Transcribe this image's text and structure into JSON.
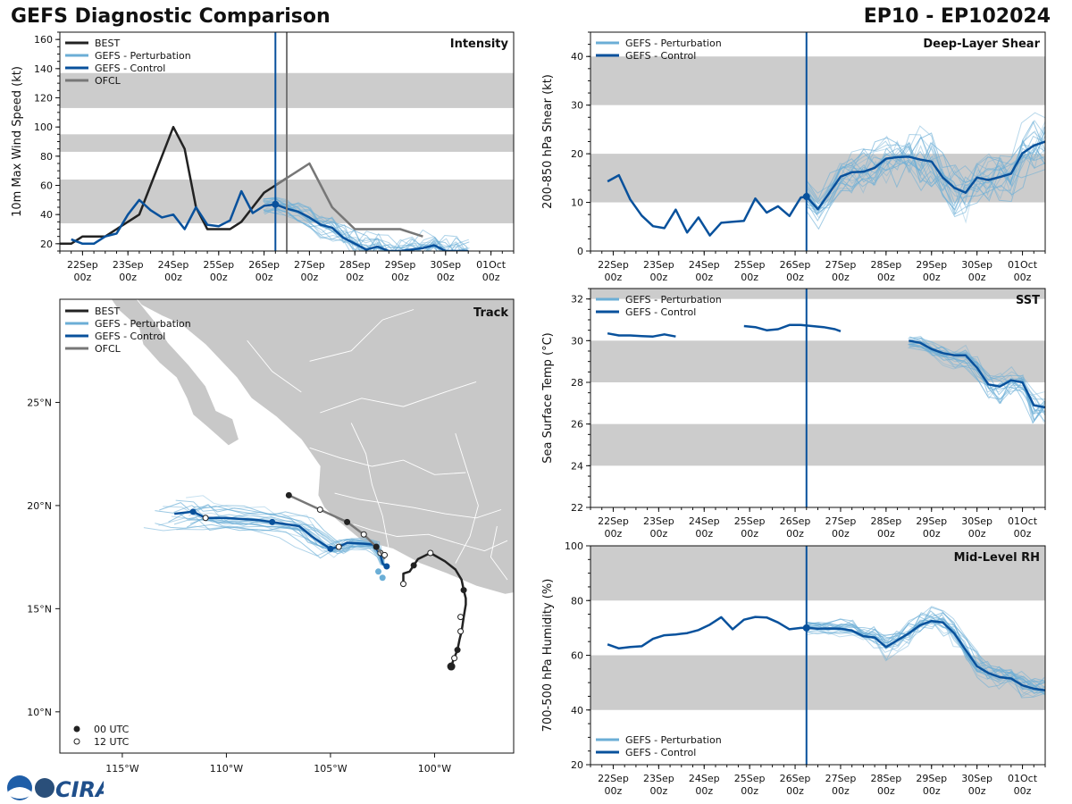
{
  "header": {
    "left_title": "GEFS Diagnostic Comparison",
    "right_title": "EP10 - EP102024"
  },
  "logo_text": "CIRA",
  "colors": {
    "best": "#222222",
    "perturbation": "#6baed6",
    "control": "#08519c",
    "ofcl": "#777777",
    "band": "#cccccc",
    "land": "#c8c8c8"
  },
  "time_ticks": [
    "22Sep",
    "23Sep",
    "24Sep",
    "25Sep",
    "26Sep",
    "27Sep",
    "28Sep",
    "29Sep",
    "30Sep",
    "01Oct"
  ],
  "time_sub": "00z",
  "init_time": 4.25,
  "ofcl_time": 4.5,
  "chart_data": [
    {
      "type": "line",
      "id": "intensity",
      "title": "Intensity",
      "ylabel": "10m Max Wind Speed (kt)",
      "ylim": [
        15,
        165
      ],
      "yticks": [
        20,
        40,
        60,
        80,
        100,
        120,
        140,
        160
      ],
      "xlim": [
        -0.5,
        9.5
      ],
      "bands": [
        [
          34,
          64
        ],
        [
          83,
          95
        ],
        [
          113,
          137
        ]
      ],
      "legend": [
        "BEST",
        "GEFS - Perturbation",
        "GEFS - Control",
        "OFCL"
      ],
      "legend_pos": "top-left",
      "series": [
        {
          "name": "BEST",
          "x": [
            -0.5,
            -0.25,
            0,
            0.25,
            0.5,
            0.75,
            1,
            1.25,
            1.5,
            1.75,
            2,
            2.25,
            2.5,
            2.75,
            3,
            3.25,
            3.5,
            3.75,
            4,
            4.25,
            4.5
          ],
          "y": [
            20,
            20,
            25,
            25,
            25,
            30,
            35,
            40,
            60,
            80,
            100,
            85,
            45,
            30,
            30,
            30,
            35,
            45,
            55,
            60,
            65
          ]
        },
        {
          "name": "GEFS - Control",
          "x": [
            -0.25,
            0,
            0.25,
            0.5,
            0.75,
            1,
            1.25,
            1.5,
            1.75,
            2,
            2.25,
            2.5,
            2.75,
            3,
            3.25,
            3.5,
            3.75,
            4,
            4.25,
            4.5,
            4.75,
            5,
            5.25,
            5.5,
            5.75,
            6,
            6.25,
            6.5,
            6.75,
            7,
            7.25,
            7.5,
            7.75,
            8,
            8.25,
            8.5
          ],
          "y": [
            23,
            20,
            20,
            25,
            27,
            40,
            50,
            43,
            38,
            40,
            30,
            45,
            33,
            32,
            36,
            56,
            41,
            46,
            47,
            44,
            42,
            38,
            33,
            31,
            24,
            20,
            16,
            18,
            15,
            15,
            16,
            17,
            19,
            15,
            15,
            15
          ]
        },
        {
          "name": "OFCL",
          "x": [
            4.25,
            4.75,
            5,
            5.5,
            6,
            6.5,
            7,
            7.5
          ],
          "y": [
            60,
            70,
            75,
            45,
            30,
            30,
            30,
            25
          ]
        }
      ]
    },
    {
      "type": "line",
      "id": "shear",
      "title": "Deep-Layer Shear",
      "ylabel": "200-850 hPa Shear (kt)",
      "ylim": [
        0,
        45
      ],
      "yticks": [
        0,
        10,
        20,
        30,
        40
      ],
      "xlim": [
        -0.5,
        9.5
      ],
      "bands": [
        [
          10,
          20
        ],
        [
          30,
          40
        ]
      ],
      "legend": [
        "GEFS - Perturbation",
        "GEFS - Control"
      ],
      "legend_pos": "top-left",
      "series": [
        {
          "name": "GEFS - Control",
          "x": [
            -0.125,
            0.125,
            0.375,
            0.625,
            0.875,
            1.125,
            1.375,
            1.625,
            1.875,
            2.125,
            2.375,
            2.625,
            2.875,
            3.125,
            3.375,
            3.625,
            3.875,
            4.125,
            4.25,
            4.5,
            4.75,
            5,
            5.25,
            5.5,
            5.75,
            6,
            6.25,
            6.5,
            6.75,
            7,
            7.25,
            7.5,
            7.75,
            8,
            8.25,
            8.5,
            8.75,
            9,
            9.25,
            9.5
          ],
          "y": [
            14.3,
            15.6,
            10.6,
            7.3,
            5.1,
            4.7,
            8.5,
            3.8,
            6.9,
            3.2,
            5.8,
            6.0,
            6.2,
            10.8,
            7.9,
            9.2,
            7.2,
            11.0,
            11.2,
            8.6,
            11.9,
            15.3,
            16.2,
            16.3,
            17.1,
            19.0,
            19.3,
            19.4,
            18.8,
            18.4,
            15.1,
            13.0,
            12.0,
            15.1,
            14.6,
            15.2,
            15.9,
            20.1,
            21.7,
            22.5
          ]
        }
      ]
    },
    {
      "type": "line",
      "id": "sst",
      "title": "SST",
      "ylabel": "Sea Surface Temp (°C)",
      "ylim": [
        22,
        32.5
      ],
      "yticks": [
        22,
        24,
        26,
        28,
        30,
        32
      ],
      "xlim": [
        -0.5,
        9.5
      ],
      "bands": [
        [
          24,
          26
        ],
        [
          28,
          30
        ],
        [
          32,
          34
        ]
      ],
      "legend": [
        "GEFS - Perturbation",
        "GEFS - Control"
      ],
      "legend_pos": "top-left",
      "series": [
        {
          "name": "GEFS - Control (a)",
          "x": [
            -0.125,
            0.125,
            0.375,
            0.625,
            0.875,
            1.125,
            1.375
          ],
          "y": [
            30.35,
            30.25,
            30.25,
            30.22,
            30.2,
            30.3,
            30.2
          ]
        },
        {
          "name": "GEFS - Control (b)",
          "x": [
            2.875,
            3.125,
            3.375,
            3.625,
            3.875,
            4.125,
            4.375,
            4.625,
            4.875,
            5.0
          ],
          "y": [
            30.7,
            30.65,
            30.5,
            30.55,
            30.75,
            30.75,
            30.7,
            30.65,
            30.55,
            30.45
          ]
        },
        {
          "name": "GEFS - Control (c)",
          "x": [
            6.5,
            6.75,
            7.0,
            7.25,
            7.5,
            7.75,
            8.0,
            8.25,
            8.5,
            8.75,
            9.0,
            9.25,
            9.5
          ],
          "y": [
            30.0,
            29.9,
            29.6,
            29.4,
            29.3,
            29.3,
            28.7,
            27.9,
            27.8,
            28.1,
            28.0,
            26.9,
            26.8
          ]
        }
      ]
    },
    {
      "type": "line",
      "id": "rh",
      "title": "Mid-Level RH",
      "ylabel": "700-500 hPa Humidity (%)",
      "ylim": [
        20,
        100
      ],
      "yticks": [
        20,
        40,
        60,
        80,
        100
      ],
      "xlim": [
        -0.5,
        9.5
      ],
      "bands": [
        [
          40,
          60
        ],
        [
          80,
          100
        ]
      ],
      "legend": [
        "GEFS - Perturbation",
        "GEFS - Control"
      ],
      "legend_pos": "bottom-left",
      "series": [
        {
          "name": "GEFS - Control",
          "x": [
            -0.125,
            0.125,
            0.375,
            0.625,
            0.875,
            1.125,
            1.375,
            1.625,
            1.875,
            2.125,
            2.375,
            2.625,
            2.875,
            3.125,
            3.375,
            3.625,
            3.875,
            4.125,
            4.25,
            4.5,
            4.75,
            5,
            5.25,
            5.5,
            5.75,
            6,
            6.25,
            6.5,
            6.75,
            7,
            7.25,
            7.5,
            7.75,
            8,
            8.25,
            8.5,
            8.75,
            9,
            9.25,
            9.5
          ],
          "y": [
            64,
            62.5,
            63,
            63.3,
            66,
            67.3,
            67.6,
            68.1,
            69.2,
            71.2,
            73.9,
            69.5,
            73,
            74,
            73.8,
            72,
            69.5,
            70,
            70,
            69.7,
            69.8,
            69.7,
            69,
            67,
            66.5,
            63,
            65.5,
            68,
            71,
            72.5,
            72,
            68,
            62,
            56,
            53.5,
            52,
            51.5,
            49,
            47.8,
            47.2
          ]
        }
      ]
    },
    {
      "type": "line",
      "id": "track",
      "title": "Track",
      "legend": [
        "BEST",
        "GEFS - Perturbation",
        "GEFS - Control",
        "OFCL"
      ],
      "legend_pos": "top-left",
      "legend2": [
        "00 UTC",
        "12 UTC"
      ],
      "legend2_pos": "bottom-left",
      "xlim": [
        -118,
        -96.2
      ],
      "ylim": [
        8,
        30
      ],
      "xticks": [
        -115,
        -110,
        -105,
        -100
      ],
      "xticklabels": [
        "115°W",
        "110°W",
        "105°W",
        "100°W"
      ],
      "yticks": [
        10,
        15,
        20,
        25
      ],
      "yticklabels": [
        "10°N",
        "15°N",
        "20°N",
        "25°N"
      ],
      "series": [
        {
          "name": "BEST",
          "lon": [
            -99.2,
            -99.1,
            -98.9,
            -98.8,
            -98.7,
            -98.6,
            -98.5,
            -98.5,
            -98.6,
            -98.7,
            -99.0,
            -99.5,
            -100.2,
            -100.8,
            -101.0,
            -101.2,
            -101.5,
            -101.5
          ],
          "lat": [
            12.2,
            12.5,
            13.0,
            13.5,
            13.9,
            14.6,
            15.2,
            15.5,
            15.9,
            16.4,
            16.9,
            17.3,
            17.7,
            17.4,
            17.1,
            16.8,
            16.7,
            16.2
          ],
          "dots00": [
            [
              -99.2,
              12.2
            ],
            [
              -98.9,
              13.0
            ],
            [
              -98.6,
              15.9
            ],
            [
              -101.0,
              17.1
            ]
          ],
          "dots12": [
            [
              -99.05,
              12.6
            ],
            [
              -98.75,
              13.9
            ],
            [
              -98.75,
              14.6
            ],
            [
              -100.2,
              17.7
            ],
            [
              -101.5,
              16.2
            ]
          ]
        },
        {
          "name": "GEFS - Control",
          "lon": [
            -112.5,
            -111.6,
            -111.0,
            -110.0,
            -108.5,
            -107.8,
            -106.5,
            -105.9,
            -105.0,
            -104.6,
            -104.2,
            -103.4,
            -102.9,
            -102.8,
            -102.6,
            -102.5,
            -102.3
          ],
          "lat": [
            19.6,
            19.7,
            19.4,
            19.4,
            19.3,
            19.2,
            19.0,
            18.5,
            17.9,
            18.0,
            18.2,
            18.15,
            18.1,
            17.9,
            17.6,
            17.2,
            17.0
          ],
          "dots00": [
            [
              -111.6,
              19.7
            ],
            [
              -107.8,
              19.2
            ],
            [
              -105.0,
              17.9
            ],
            [
              -102.8,
              18.0
            ],
            [
              -102.3,
              17.05
            ]
          ],
          "dots12": [
            [
              -111.0,
              19.4
            ],
            [
              -104.6,
              18.0
            ],
            [
              -102.6,
              17.7
            ]
          ]
        },
        {
          "name": "OFCL",
          "lon": [
            -107.0,
            -105.5,
            -104.2,
            -103.4,
            -102.8,
            -102.5,
            -102.4
          ],
          "lat": [
            20.5,
            19.8,
            19.2,
            18.6,
            18.0,
            17.6,
            17.4
          ],
          "dots00": [
            [
              -107.0,
              20.5
            ],
            [
              -104.2,
              19.2
            ],
            [
              -102.8,
              18.0
            ]
          ],
          "dots12": [
            [
              -105.5,
              19.8
            ],
            [
              -103.4,
              18.6
            ],
            [
              -102.4,
              17.6
            ]
          ]
        }
      ]
    }
  ]
}
